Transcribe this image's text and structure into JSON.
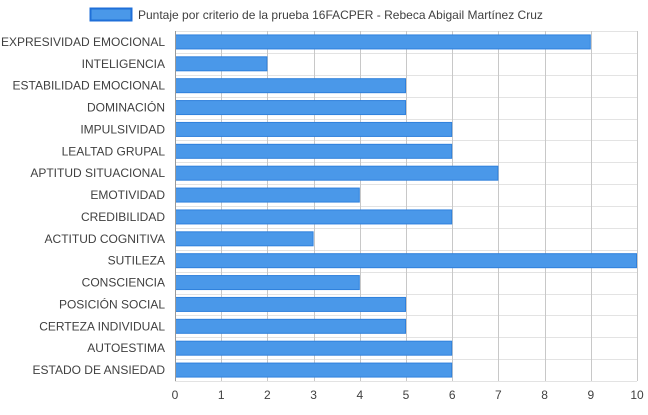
{
  "chart_data": {
    "type": "bar",
    "orientation": "horizontal",
    "categories": [
      "EXPRESIVIDAD EMOCIONAL",
      "INTELIGENCIA",
      "ESTABILIDAD EMOCIONAL",
      "DOMINACIÓN",
      "IMPULSIVIDAD",
      "LEALTAD GRUPAL",
      "APTITUD SITUACIONAL",
      "EMOTIVIDAD",
      "CREDIBILIDAD",
      "ACTITUD COGNITIVA",
      "SUTILEZA",
      "CONSCIENCIA",
      "POSICIÓN SOCIAL",
      "CERTEZA INDIVIDUAL",
      "AUTOESTIMA",
      "ESTADO DE ANSIEDAD"
    ],
    "series": [
      {
        "name": "Puntaje por criterio de la prueba 16FACPER - Rebeca Abigail Martínez Cruz",
        "values": [
          9,
          2,
          5,
          5,
          6,
          6,
          7,
          4,
          6,
          3,
          10,
          4,
          5,
          5,
          6,
          6
        ]
      }
    ],
    "xlim": [
      0,
      10
    ],
    "xticks": [
      0,
      1,
      2,
      3,
      4,
      5,
      6,
      7,
      8,
      9,
      10
    ],
    "grid": true,
    "legend_position": "top",
    "colors": {
      "bar_fill": "#4a98e9",
      "bar_stroke": "#2f80dc",
      "legend_fill": "#4a98e9",
      "legend_stroke": "#1f6fd8",
      "grid_vertical": "#c8c8c8",
      "grid_horizontal": "#e3e3e3",
      "axis": "#9a9a9a",
      "label_text": "#404040"
    }
  }
}
